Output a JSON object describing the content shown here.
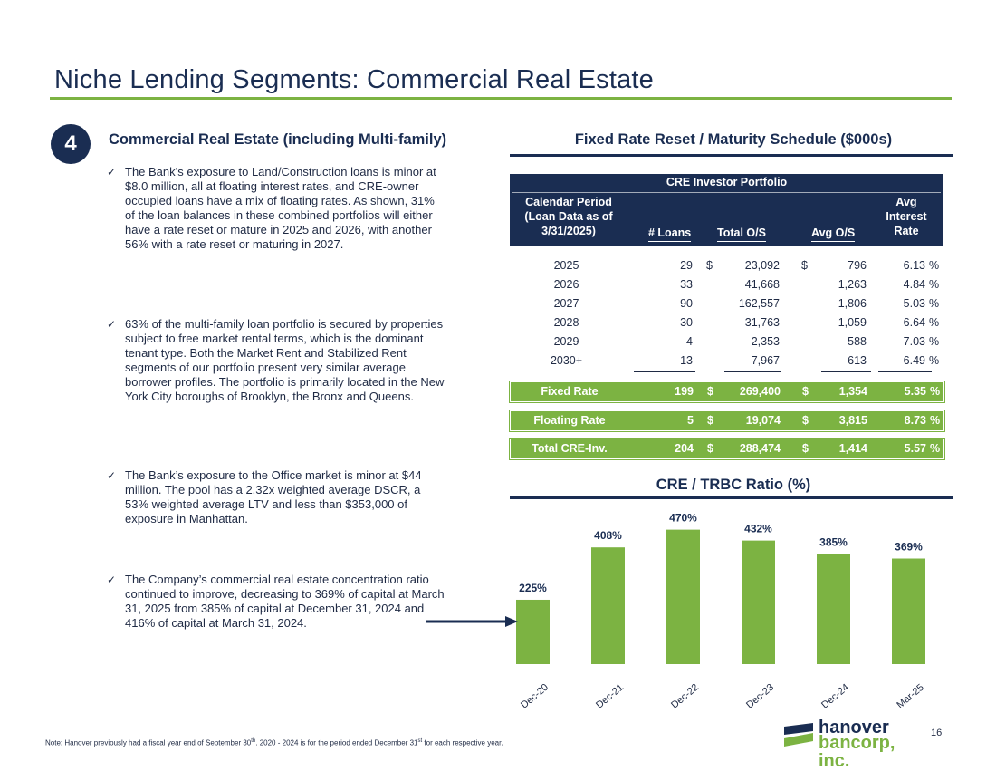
{
  "title": "Niche Lending Segments: Commercial Real Estate",
  "badge": "4",
  "left": {
    "heading": "Commercial Real Estate (including Multi-family)",
    "bullets": [
      "The Bank’s exposure to Land/Construction loans is minor at $8.0 million, all at floating interest rates, and CRE-owner occupied loans have a mix of floating rates. As shown, 31% of the loan balances in these combined portfolios will either have a rate reset or mature in 2025 and 2026, with another 56% with a rate reset or maturing in 2027.",
      "63% of the multi-family loan portfolio is secured by properties subject to free market rental terms, which is the dominant tenant type. Both the Market Rent and Stabilized Rent segments of our portfolio present very similar average borrower profiles. The portfolio is primarily located in the New York City boroughs of Brooklyn, the Bronx and Queens.",
      "The Bank’s exposure to the Office market is minor at $44 million. The pool has a 2.32x weighted average DSCR, a 53% weighted average LTV and less than $353,000 of exposure in Manhattan.",
      "The Company’s commercial real estate concentration ratio continued to improve, decreasing to 369% of capital at March 31, 2025 from 385% of capital at December 31, 2024 and 416% of capital at March 31, 2024."
    ],
    "check_glyph": "✓"
  },
  "table": {
    "heading": "Fixed Rate Reset / Maturity Schedule ($000s)",
    "title": "CRE Investor Portfolio",
    "headers": {
      "period": [
        "Calendar Period",
        "(Loan Data as of",
        "3/31/2025)"
      ],
      "loans": "# Loans",
      "total": "Total O/S",
      "avg": "Avg O/S",
      "rate": [
        "Avg",
        "Interest",
        "Rate"
      ]
    },
    "rows": [
      {
        "year": "2025",
        "loans": "29",
        "d1": "$",
        "total": "23,092",
        "d2": "$",
        "avg": "796",
        "rate": "6.13",
        "pct": "%"
      },
      {
        "year": "2026",
        "loans": "33",
        "d1": "",
        "total": "41,668",
        "d2": "",
        "avg": "1,263",
        "rate": "4.84",
        "pct": "%"
      },
      {
        "year": "2027",
        "loans": "90",
        "d1": "",
        "total": "162,557",
        "d2": "",
        "avg": "1,806",
        "rate": "5.03",
        "pct": "%"
      },
      {
        "year": "2028",
        "loans": "30",
        "d1": "",
        "total": "31,763",
        "d2": "",
        "avg": "1,059",
        "rate": "6.64",
        "pct": "%"
      },
      {
        "year": "2029",
        "loans": "4",
        "d1": "",
        "total": "2,353",
        "d2": "",
        "avg": "588",
        "rate": "7.03",
        "pct": "%"
      },
      {
        "year": "2030+",
        "loans": "13",
        "d1": "",
        "total": "7,967",
        "d2": "",
        "avg": "613",
        "rate": "6.49",
        "pct": "%"
      }
    ],
    "summary": [
      {
        "label": "Fixed Rate",
        "loans": "199",
        "d1": "$",
        "total": "269,400",
        "d2": "$",
        "avg": "1,354",
        "rate": "5.35",
        "pct": "%"
      },
      {
        "label": "Floating Rate",
        "loans": "5",
        "d1": "$",
        "total": "19,074",
        "d2": "$",
        "avg": "3,815",
        "rate": "8.73",
        "pct": "%"
      },
      {
        "label": "Total CRE-Inv.",
        "loans": "204",
        "d1": "$",
        "total": "288,474",
        "d2": "$",
        "avg": "1,414",
        "rate": "5.57",
        "pct": "%"
      }
    ]
  },
  "chart_heading": "CRE / TRBC Ratio (%)",
  "chart_data": {
    "type": "bar",
    "title": "CRE / TRBC Ratio (%)",
    "categories": [
      "Dec-20",
      "Dec-21",
      "Dec-22",
      "Dec-23",
      "Dec-24",
      "Mar-25"
    ],
    "values": [
      225,
      408,
      470,
      432,
      385,
      369
    ],
    "labels": [
      "225%",
      "408%",
      "470%",
      "432%",
      "385%",
      "369%"
    ],
    "ylim": [
      0,
      520
    ],
    "bar_color": "#7cb342",
    "label_color": "#1a2d52",
    "grid": false
  },
  "note": {
    "prefix": "Note: Hanover previously had a fiscal year end of September 30",
    "sup1": "th",
    "middle": ". 2020 - 2024 is for the period ended December 31",
    "sup2": "st",
    "suffix": " for each respective year."
  },
  "logo": {
    "line1": "hanover",
    "line2": "bancorp, inc."
  },
  "page_number": "16",
  "colors": {
    "navy": "#1a2d52",
    "green": "#7cb342"
  }
}
